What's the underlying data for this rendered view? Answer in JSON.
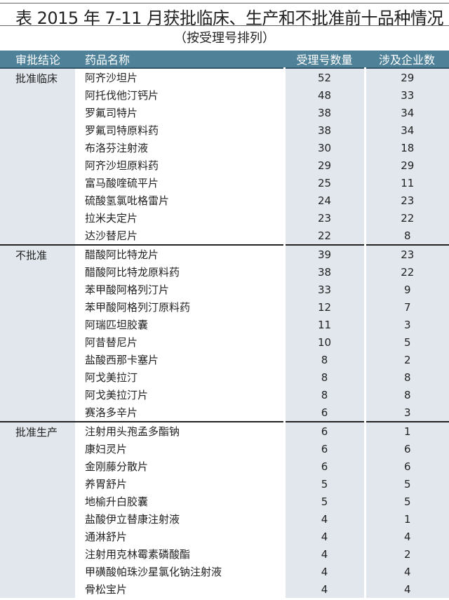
{
  "title": "表 2015 年 7-11 月获批临床、生产和不批准前十品种情况",
  "subtitle": "（按受理号排列）",
  "headers": [
    "审批结论",
    "药品名称",
    "受理号数量",
    "涉及企业数"
  ],
  "colors": {
    "header": "#4f8298",
    "shaded_column": "#e1e7ed"
  },
  "groups": [
    {
      "conclusion": "批准临床",
      "rows": [
        [
          "阿齐沙坦片",
          "52",
          "29"
        ],
        [
          "阿托伐他汀钙片",
          "48",
          "33"
        ],
        [
          "罗氟司特片",
          "38",
          "34"
        ],
        [
          "罗氟司特原料药",
          "38",
          "34"
        ],
        [
          "布洛芬注射液",
          "30",
          "18"
        ],
        [
          "阿齐沙坦原料药",
          "29",
          "29"
        ],
        [
          "富马酸喹硫平片",
          "25",
          "11"
        ],
        [
          "硫酸氢氯吡格雷片",
          "24",
          "23"
        ],
        [
          "拉米夫定片",
          "23",
          "22"
        ],
        [
          "达沙替尼片",
          "22",
          "8"
        ]
      ]
    },
    {
      "conclusion": "不批准",
      "rows": [
        [
          "醋酸阿比特龙片",
          "39",
          "23"
        ],
        [
          "醋酸阿比特龙原料药",
          "38",
          "22"
        ],
        [
          "苯甲酸阿格列汀片",
          "33",
          "9"
        ],
        [
          "苯甲酸阿格列汀原料药",
          "12",
          "7"
        ],
        [
          "阿瑞匹坦胶囊",
          "11",
          "3"
        ],
        [
          "阿昔替尼片",
          "10",
          "5"
        ],
        [
          "盐酸西那卡塞片",
          "8",
          "2"
        ],
        [
          "阿戈美拉汀",
          "8",
          "8"
        ],
        [
          "阿戈美拉汀片",
          "8",
          "8"
        ],
        [
          "赛洛多辛片",
          "6",
          "3"
        ]
      ]
    },
    {
      "conclusion": "批准生产",
      "rows": [
        [
          "注射用头孢孟多酯钠",
          "6",
          "1"
        ],
        [
          "康妇灵片",
          "6",
          "6"
        ],
        [
          "金刚藤分散片",
          "6",
          "6"
        ],
        [
          "养胃舒片",
          "5",
          "5"
        ],
        [
          "地榆升白胶囊",
          "5",
          "5"
        ],
        [
          "盐酸伊立替康注射液",
          "4",
          "1"
        ],
        [
          "通淋舒片",
          "4",
          "4"
        ],
        [
          "注射用克林霉素磷酸酯",
          "4",
          "2"
        ],
        [
          "甲磺酸帕珠沙星氯化钠注射液",
          "4",
          "4"
        ],
        [
          "骨松宝片",
          "4",
          "4"
        ]
      ]
    }
  ]
}
